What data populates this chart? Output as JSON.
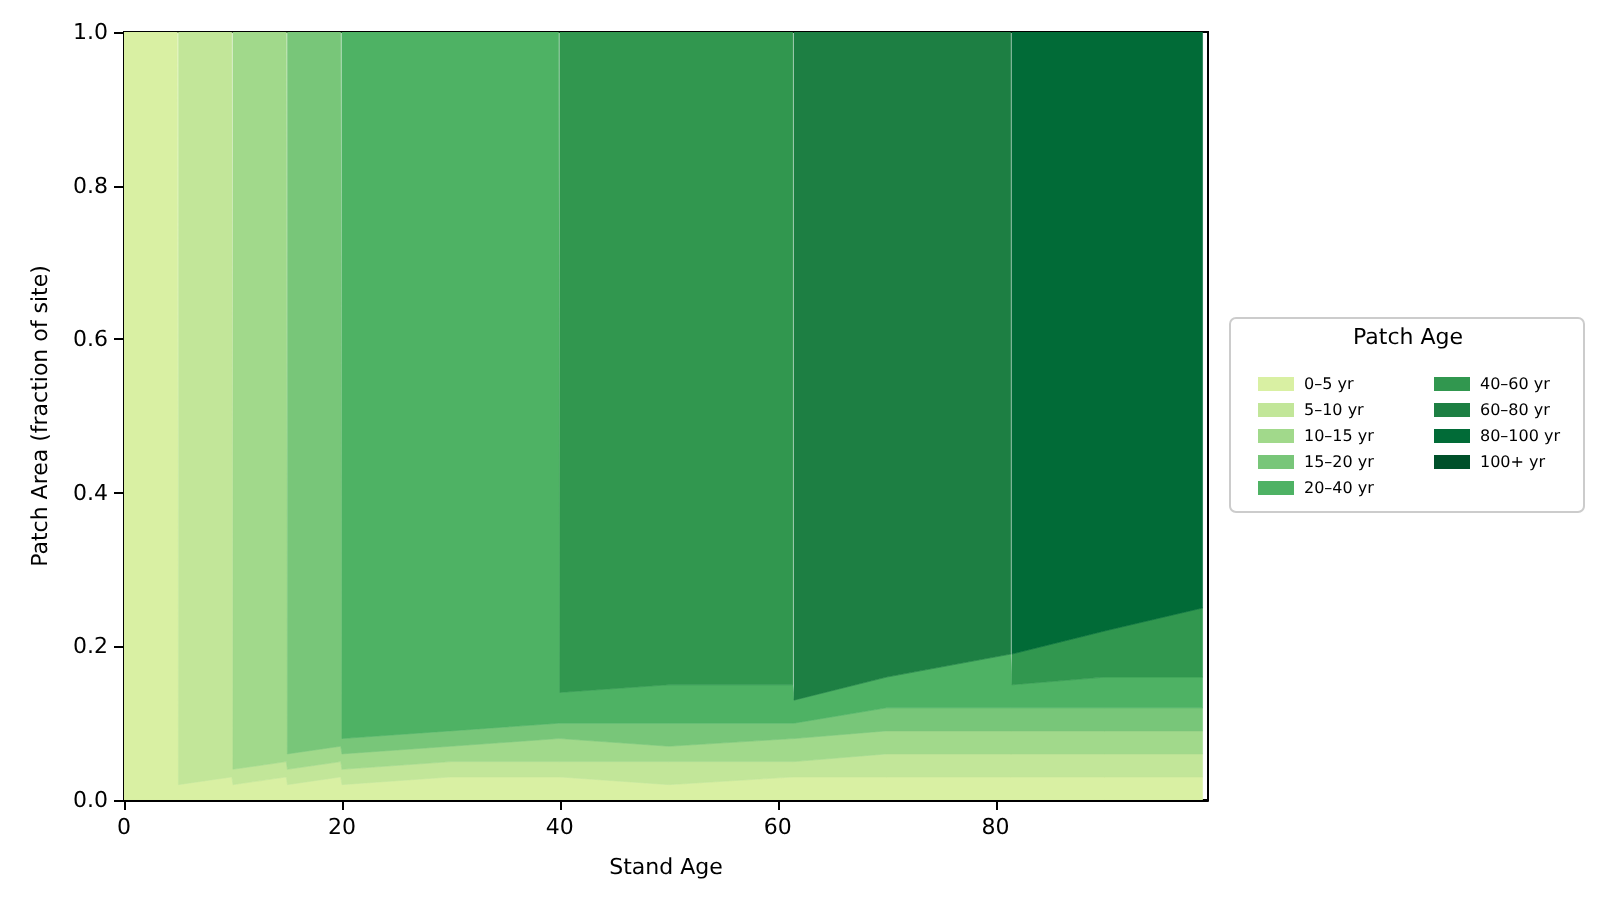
{
  "chart_data": {
    "type": "area",
    "stacked": true,
    "xlabel": "Stand Age",
    "ylabel": "Patch Area (fraction of site)",
    "legend_title": "Patch Age",
    "legend": "right",
    "x": [
      0,
      4.9,
      5,
      9.9,
      10,
      14.9,
      15,
      19.9,
      20,
      30,
      39.9,
      40,
      50,
      61.4,
      61.5,
      70,
      81.4,
      81.5,
      90,
      99
    ],
    "xlim": [
      0,
      99.5
    ],
    "xticks": [
      0,
      20,
      40,
      60,
      80
    ],
    "ylim": [
      0,
      1
    ],
    "yticks": [
      {
        "value": 0,
        "label": "0.0"
      },
      {
        "value": 0.2,
        "label": "0.2"
      },
      {
        "value": 0.4,
        "label": "0.4"
      },
      {
        "value": 0.6,
        "label": "0.6"
      },
      {
        "value": 0.8,
        "label": "0.8"
      },
      {
        "value": 1,
        "label": "1.0"
      }
    ],
    "series": [
      {
        "name": "0–5 yr",
        "color": "#d9f0a3",
        "values": [
          1,
          1,
          0.02,
          0.03,
          0.02,
          0.03,
          0.02,
          0.03,
          0.02,
          0.03,
          0.03,
          0.03,
          0.02,
          0.03,
          0.03,
          0.03,
          0.03,
          0.03,
          0.03,
          0.03
        ]
      },
      {
        "name": "5–10 yr",
        "color": "#c2e699",
        "values": [
          null,
          null,
          0.98,
          0.97,
          0.02,
          0.02,
          0.02,
          0.02,
          0.02,
          0.02,
          0.02,
          0.02,
          0.03,
          0.02,
          0.02,
          0.03,
          0.03,
          0.03,
          0.03,
          0.03
        ]
      },
      {
        "name": "10–15 yr",
        "color": "#a1d98b",
        "values": [
          null,
          null,
          null,
          null,
          0.96,
          0.95,
          0.02,
          0.02,
          0.02,
          0.02,
          0.03,
          0.03,
          0.02,
          0.03,
          0.03,
          0.03,
          0.03,
          0.03,
          0.03,
          0.03
        ]
      },
      {
        "name": "15–20 yr",
        "color": "#78c679",
        "values": [
          null,
          null,
          null,
          null,
          null,
          null,
          0.94,
          0.93,
          0.02,
          0.02,
          0.02,
          0.02,
          0.03,
          0.02,
          0.02,
          0.03,
          0.03,
          0.03,
          0.03,
          0.03
        ]
      },
      {
        "name": "20–40 yr",
        "color": "#4eb264",
        "values": [
          null,
          null,
          null,
          null,
          null,
          null,
          null,
          null,
          0.92,
          0.91,
          0.9,
          0.04,
          0.05,
          0.05,
          0.03,
          0.04,
          0.07,
          0.03,
          0.04,
          0.04
        ]
      },
      {
        "name": "40–60 yr",
        "color": "#31974f",
        "values": [
          null,
          null,
          null,
          null,
          null,
          null,
          null,
          null,
          null,
          null,
          null,
          0.86,
          0.85,
          0.85,
          null,
          null,
          null,
          0.04,
          0.06,
          0.09
        ]
      },
      {
        "name": "60–80 yr",
        "color": "#1d7f43",
        "values": [
          null,
          null,
          null,
          null,
          null,
          null,
          null,
          null,
          null,
          null,
          null,
          null,
          null,
          null,
          0.87,
          0.84,
          0.81,
          null,
          null,
          null
        ]
      },
      {
        "name": "80–100 yr",
        "color": "#016b37",
        "values": [
          null,
          null,
          null,
          null,
          null,
          null,
          null,
          null,
          null,
          null,
          null,
          null,
          null,
          null,
          null,
          null,
          null,
          0.81,
          0.78,
          0.75
        ]
      },
      {
        "name": "100+ yr",
        "color": "#00502a",
        "values": [
          null,
          null,
          null,
          null,
          null,
          null,
          null,
          null,
          null,
          null,
          null,
          null,
          null,
          null,
          null,
          null,
          null,
          null,
          null,
          null
        ]
      }
    ]
  }
}
